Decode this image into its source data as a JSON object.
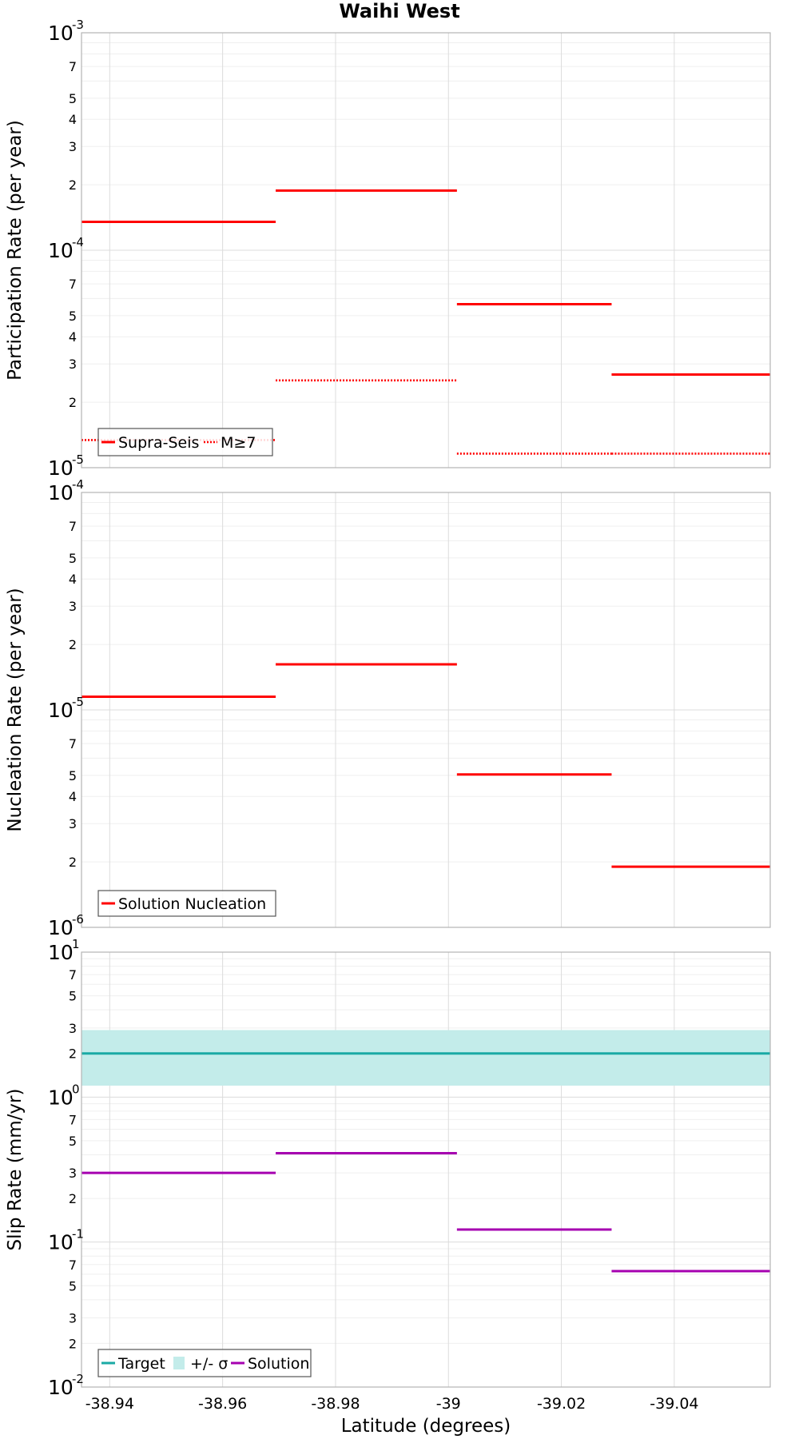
{
  "chart_data": {
    "title": "Waihi West",
    "xlabel": "Latitude (degrees)",
    "xlim": [
      -38.935,
      -39.057
    ],
    "x_ticks": [
      "-38.94",
      "-38.96",
      "-38.98",
      "-39",
      "-39.02",
      "-39.04"
    ],
    "x_tick_values": [
      -38.94,
      -38.96,
      -38.98,
      -39.0,
      -39.02,
      -39.04
    ],
    "panels": [
      {
        "type": "line",
        "ylabel": "Participation Rate (per year)",
        "yscale": "log",
        "ylim": [
          1e-05,
          0.001
        ],
        "decade_labels": [
          {
            "value": 1e-05,
            "base": "10",
            "exp": "-5"
          },
          {
            "value": 0.0001,
            "base": "10",
            "exp": "-4"
          },
          {
            "value": 0.001,
            "base": "10",
            "exp": "-3"
          }
        ],
        "minor_labels": [
          "2",
          "3",
          "4",
          "5",
          "7"
        ],
        "series": [
          {
            "name": "Supra-Seis",
            "color": "#ff0000",
            "style": "solid",
            "segments": [
              {
                "x": [
                  -38.935,
                  -38.9694
                ],
                "y": 0.000135
              },
              {
                "x": [
                  -38.9694,
                  -39.0015
                ],
                "y": 0.000188
              },
              {
                "x": [
                  -39.0015,
                  -39.0289
                ],
                "y": 5.65e-05
              },
              {
                "x": [
                  -39.0289,
                  -39.057
                ],
                "y": 2.68e-05
              }
            ]
          },
          {
            "name": "M≥7",
            "color": "#ff0000",
            "style": "dotted",
            "segments": [
              {
                "x": [
                  -38.935,
                  -38.9694
                ],
                "y": 1.34e-05
              },
              {
                "x": [
                  -38.9694,
                  -39.0015
                ],
                "y": 2.52e-05
              },
              {
                "x": [
                  -39.0015,
                  -39.0289
                ],
                "y": 1.16e-05
              },
              {
                "x": [
                  -39.0289,
                  -39.057
                ],
                "y": 1.16e-05
              }
            ]
          }
        ]
      },
      {
        "type": "line",
        "ylabel": "Nucleation Rate (per year)",
        "yscale": "log",
        "ylim": [
          1e-06,
          0.0001
        ],
        "decade_labels": [
          {
            "value": 1e-06,
            "base": "10",
            "exp": "-6"
          },
          {
            "value": 1e-05,
            "base": "10",
            "exp": "-5"
          },
          {
            "value": 0.0001,
            "base": "10",
            "exp": "-4"
          }
        ],
        "minor_labels": [
          "2",
          "3",
          "4",
          "5",
          "7"
        ],
        "series": [
          {
            "name": "Solution Nucleation",
            "color": "#ff0000",
            "style": "solid",
            "segments": [
              {
                "x": [
                  -38.935,
                  -38.9694
                ],
                "y": 1.15e-05
              },
              {
                "x": [
                  -38.9694,
                  -39.0015
                ],
                "y": 1.62e-05
              },
              {
                "x": [
                  -39.0015,
                  -39.0289
                ],
                "y": 5.05e-06
              },
              {
                "x": [
                  -39.0289,
                  -39.057
                ],
                "y": 1.9e-06
              }
            ]
          }
        ]
      },
      {
        "type": "line",
        "ylabel": "Slip Rate (mm/yr)",
        "yscale": "log",
        "ylim": [
          0.01,
          10
        ],
        "decade_labels": [
          {
            "value": 0.01,
            "base": "10",
            "exp": "-2"
          },
          {
            "value": 0.1,
            "base": "10",
            "exp": "-1"
          },
          {
            "value": 1,
            "base": "10",
            "exp": "0"
          },
          {
            "value": 10,
            "base": "10",
            "exp": "1"
          }
        ],
        "minor_labels": [
          "2",
          "3",
          "5",
          "7"
        ],
        "band": {
          "name": "+/- σ",
          "color": "#c3ecea",
          "y_low": 1.2,
          "y_high": 2.9,
          "x": [
            -38.935,
            -39.057
          ]
        },
        "series": [
          {
            "name": "Target",
            "color": "#1aaaa5",
            "style": "solid",
            "segments": [
              {
                "x": [
                  -38.935,
                  -39.057
                ],
                "y": 2.0
              }
            ]
          },
          {
            "name": "Solution",
            "color": "#a600b0",
            "style": "solid",
            "segments": [
              {
                "x": [
                  -38.935,
                  -38.9694
                ],
                "y": 0.3
              },
              {
                "x": [
                  -38.9694,
                  -39.0015
                ],
                "y": 0.41
              },
              {
                "x": [
                  -39.0015,
                  -39.0289
                ],
                "y": 0.122
              },
              {
                "x": [
                  -39.0289,
                  -39.057
                ],
                "y": 0.063
              }
            ]
          }
        ],
        "legend": [
          "Target",
          "+/- σ",
          "Solution"
        ]
      }
    ]
  }
}
